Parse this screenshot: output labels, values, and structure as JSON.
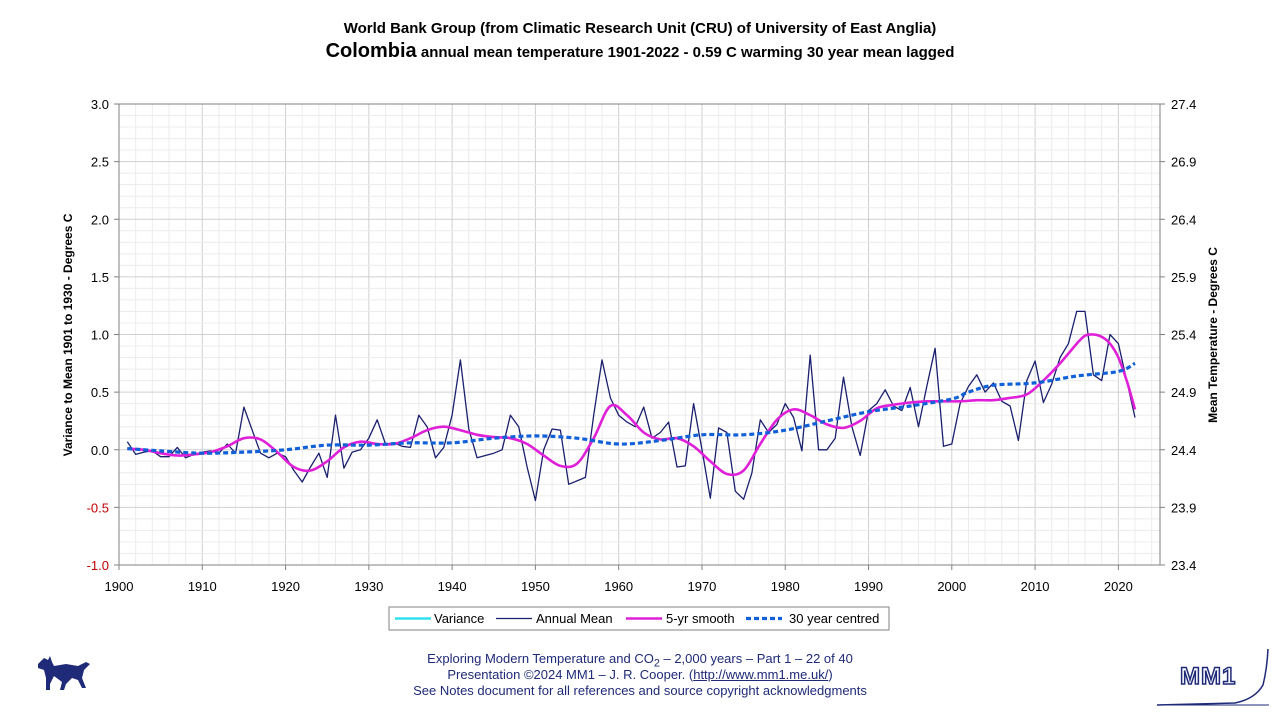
{
  "header": {
    "line1": "World Bank Group (from Climatic Research Unit (CRU) of University of East Anglia)",
    "country": "Colombia",
    "line2_rest": " annual mean temperature 1901-2022 - 0.59 C warming 30 year mean lagged"
  },
  "footer": {
    "line1_a": "Exploring Modern Temperature and CO",
    "line1_sub": "2",
    "line1_b": " – 2,000 years – Part 1 – 22 of 40",
    "line2_a": "Presentation ©2024 MM1 – J. R. Cooper. (",
    "line2_link": "http://www.mm1.me.uk/",
    "line2_b": ")",
    "line3": "See Notes document for all references and source copyright acknowledgments"
  },
  "logo": {
    "text": "MM1"
  },
  "chart_data": {
    "type": "line",
    "ylabel_left": "Variance to Mean 1901 to 1930 - Degrees C",
    "ylabel_right": "Mean Temperature - Degrees C",
    "xlim": [
      1900,
      2025
    ],
    "ylim_left": [
      -1.0,
      3.0
    ],
    "ylim_right": [
      23.4,
      27.4
    ],
    "x_ticks": [
      "1900",
      "1910",
      "1920",
      "1930",
      "1940",
      "1950",
      "1960",
      "1970",
      "1980",
      "1990",
      "2000",
      "2010",
      "2020"
    ],
    "y_ticks_left": [
      "3.0",
      "2.5",
      "2.0",
      "1.5",
      "1.0",
      "0.5",
      "0.0",
      "-0.5",
      "-1.0"
    ],
    "y_ticks_right": [
      "27.4",
      "26.9",
      "26.4",
      "25.9",
      "25.4",
      "24.9",
      "24.4",
      "23.9",
      "23.4"
    ],
    "grid": true,
    "legend_position": "bottom",
    "colors": {
      "variance": "#33e0f0",
      "annual": "#1a1f6e",
      "smooth": "#e020d8",
      "centred": "#1060d8",
      "negative_tick": "#c00000"
    },
    "series": [
      {
        "name": "Annual Mean",
        "x_start": 1901,
        "values": [
          0.07,
          -0.04,
          -0.02,
          -0.01,
          -0.06,
          -0.06,
          0.02,
          -0.07,
          -0.04,
          -0.02,
          -0.01,
          -0.03,
          0.05,
          -0.03,
          0.37,
          0.17,
          -0.03,
          -0.07,
          -0.03,
          -0.06,
          -0.18,
          -0.28,
          -0.15,
          -0.03,
          -0.24,
          0.3,
          -0.16,
          -0.02,
          0.0,
          0.1,
          0.26,
          0.05,
          0.06,
          0.03,
          0.02,
          0.3,
          0.2,
          -0.07,
          0.02,
          0.3,
          0.78,
          0.18,
          -0.07,
          -0.05,
          -0.03,
          0.0,
          0.3,
          0.2,
          -0.15,
          -0.44,
          0.0,
          0.18,
          0.17,
          -0.3,
          -0.27,
          -0.24,
          0.3,
          0.78,
          0.45,
          0.3,
          0.24,
          0.2,
          0.37,
          0.1,
          0.15,
          0.24,
          -0.15,
          -0.14,
          0.4,
          0.0,
          -0.42,
          0.19,
          0.15,
          -0.36,
          -0.43,
          -0.2,
          0.26,
          0.15,
          0.22,
          0.4,
          0.28,
          -0.01,
          0.82,
          0.0,
          0.0,
          0.1,
          0.63,
          0.2,
          -0.05,
          0.34,
          0.4,
          0.52,
          0.38,
          0.34,
          0.54,
          0.2,
          0.55,
          0.88,
          0.03,
          0.05,
          0.4,
          0.55,
          0.65,
          0.5,
          0.58,
          0.42,
          0.38,
          0.08,
          0.6,
          0.77,
          0.41,
          0.57,
          0.8,
          0.92,
          1.2,
          1.2,
          0.65,
          0.6,
          1.0,
          0.92,
          0.6,
          0.28
        ]
      },
      {
        "name": "5-yr smooth",
        "x": [
          1901,
          1903,
          1905,
          1907,
          1909,
          1911,
          1913,
          1915,
          1917,
          1919,
          1921,
          1923,
          1925,
          1927,
          1929,
          1931,
          1933,
          1935,
          1937,
          1939,
          1941,
          1943,
          1945,
          1947,
          1949,
          1951,
          1953,
          1955,
          1957,
          1959,
          1961,
          1963,
          1965,
          1967,
          1969,
          1971,
          1973,
          1975,
          1977,
          1979,
          1981,
          1983,
          1985,
          1987,
          1989,
          1991,
          1993,
          1995,
          1997,
          1999,
          2001,
          2003,
          2005,
          2007,
          2009,
          2011,
          2013,
          2015,
          2016,
          2017,
          2018,
          2019,
          2020,
          2021,
          2022
        ],
        "values": [
          0.01,
          0.0,
          -0.03,
          -0.05,
          -0.04,
          -0.02,
          0.03,
          0.1,
          0.09,
          -0.02,
          -0.15,
          -0.18,
          -0.1,
          0.02,
          0.07,
          0.05,
          0.05,
          0.1,
          0.17,
          0.2,
          0.17,
          0.13,
          0.11,
          0.1,
          0.05,
          -0.05,
          -0.14,
          -0.12,
          0.1,
          0.38,
          0.3,
          0.15,
          0.09,
          0.1,
          0.03,
          -0.1,
          -0.21,
          -0.18,
          0.05,
          0.26,
          0.35,
          0.3,
          0.22,
          0.19,
          0.25,
          0.36,
          0.39,
          0.41,
          0.42,
          0.42,
          0.42,
          0.43,
          0.43,
          0.45,
          0.48,
          0.6,
          0.75,
          0.92,
          0.99,
          1.0,
          0.98,
          0.92,
          0.8,
          0.6,
          0.35
        ]
      },
      {
        "name": "30 year centred",
        "x": [
          1901,
          1905,
          1910,
          1915,
          1920,
          1925,
          1930,
          1935,
          1940,
          1945,
          1950,
          1955,
          1960,
          1965,
          1970,
          1975,
          1980,
          1985,
          1990,
          1995,
          2000,
          2002,
          2005,
          2010,
          2015,
          2020,
          2022
        ],
        "values": [
          0.01,
          -0.01,
          -0.03,
          -0.02,
          0.0,
          0.04,
          0.04,
          0.06,
          0.06,
          0.1,
          0.12,
          0.1,
          0.05,
          0.08,
          0.13,
          0.13,
          0.17,
          0.25,
          0.33,
          0.38,
          0.44,
          0.5,
          0.56,
          0.58,
          0.64,
          0.68,
          0.75
        ]
      },
      {
        "name": "Variance",
        "values": []
      }
    ]
  }
}
